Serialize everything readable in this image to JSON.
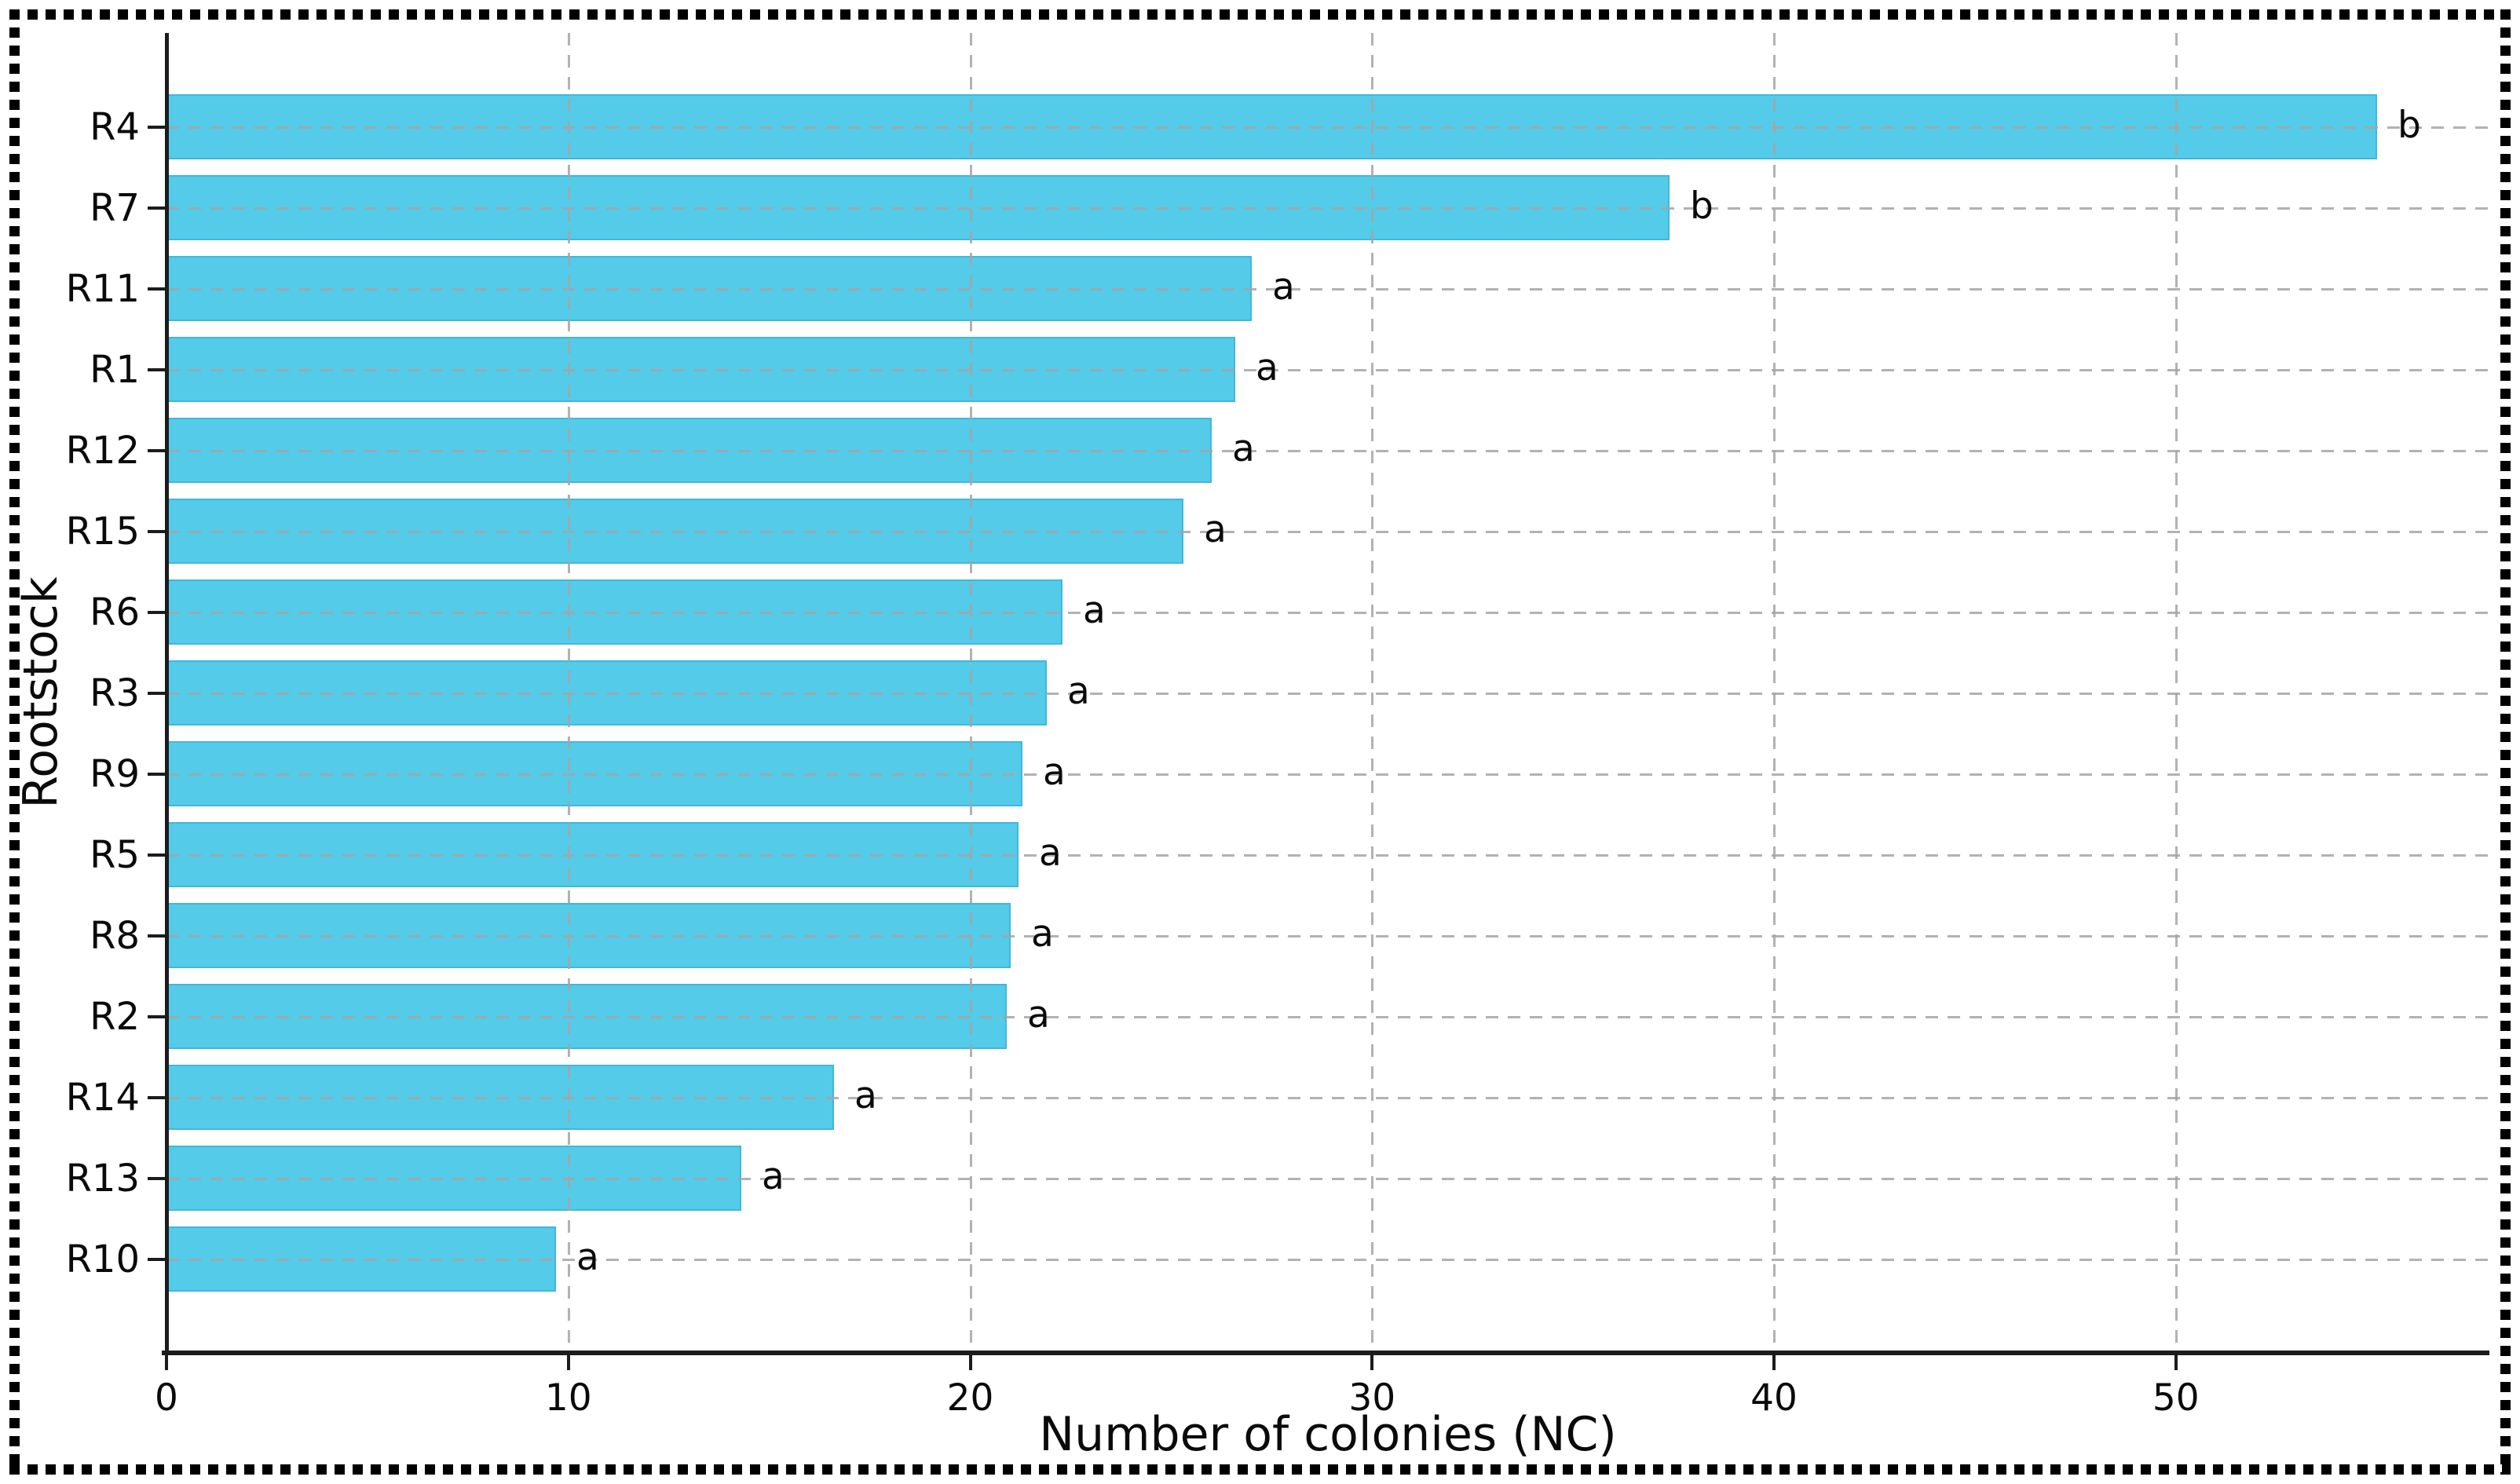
{
  "chart_data": {
    "type": "bar",
    "orientation": "horizontal",
    "title": "",
    "xlabel": "Number of colonies (NC)",
    "ylabel": "Rootstock",
    "categories": [
      "R4",
      "R7",
      "R11",
      "R1",
      "R12",
      "R15",
      "R6",
      "R3",
      "R9",
      "R5",
      "R8",
      "R2",
      "R14",
      "R13",
      "R10"
    ],
    "values": [
      55.0,
      37.4,
      27.0,
      26.6,
      26.0,
      25.3,
      22.3,
      21.9,
      21.3,
      21.2,
      21.0,
      20.9,
      16.6,
      14.3,
      9.7
    ],
    "significance_letters": [
      "b",
      "b",
      "a",
      "a",
      "a",
      "a",
      "a",
      "a",
      "a",
      "a",
      "a",
      "a",
      "a",
      "a",
      "a"
    ],
    "xlim": [
      0,
      57.8
    ],
    "xticks": [
      0,
      10,
      20,
      30,
      40,
      50
    ],
    "grid": "dashed",
    "legend": "none",
    "bar_color": "#54CBE8",
    "bar_edge_color": "#3FB8DC",
    "gridline_color": "#C3C3C3",
    "axis_color": "#1C1C1C",
    "text_color": "#0A0A0A",
    "frame_border_color": "#000000",
    "background_color": "#FFFFFF"
  }
}
